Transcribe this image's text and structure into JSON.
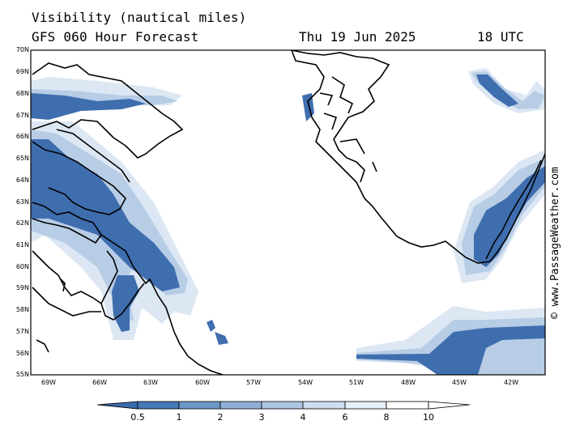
{
  "title": {
    "line1": "Visibility (nautical miles)",
    "line2": "GFS 060 Hour Forecast",
    "date": "Thu 19 Jun 2025",
    "time": "18 UTC"
  },
  "credit": "© www.PassageWeather.com",
  "lat_labels": [
    "70N",
    "69N",
    "68N",
    "67N",
    "66N",
    "65N",
    "64N",
    "63N",
    "62N",
    "61N",
    "60N",
    "59N",
    "58N",
    "57N",
    "56N",
    "55N"
  ],
  "lon_labels": [
    "69W",
    "66W",
    "63W",
    "60W",
    "57W",
    "54W",
    "51W",
    "48W",
    "45W",
    "42W"
  ],
  "colorbar": {
    "ticks": [
      "0.5",
      "1",
      "2",
      "3",
      "4",
      "6",
      "8",
      "10"
    ],
    "colors": [
      "#3a6aaa",
      "#4677b6",
      "#6c96c8",
      "#8fb0d6",
      "#afc6e2",
      "#cdddee",
      "#e6eef7",
      "#ffffff"
    ]
  },
  "colors": {
    "fog_dark": "#3f6eaf",
    "fog_mid": "#6f98c9",
    "fog_light": "#b7cde6",
    "fog_faint": "#dce7f3",
    "coast": "#000000"
  }
}
